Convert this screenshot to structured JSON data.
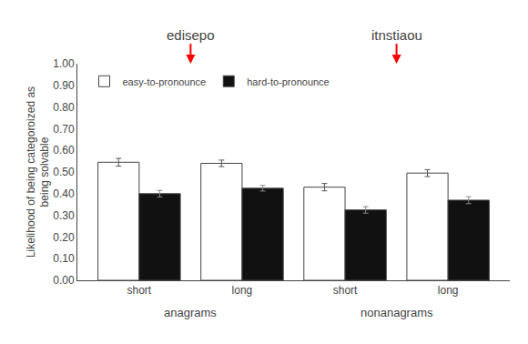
{
  "chart_data": {
    "type": "bar",
    "categories": [
      "short",
      "long",
      "short",
      "long"
    ],
    "group_labels": [
      "anagrams",
      "nonanagrams"
    ],
    "annotations": [
      "edisepo",
      "itnstiaou"
    ],
    "series": [
      {
        "name": "easy-to-pronounce",
        "color": "#ffffff",
        "values": [
          0.545,
          0.54,
          0.43,
          0.495
        ],
        "errors": [
          0.018,
          0.015,
          0.017,
          0.016
        ]
      },
      {
        "name": "hard-to-pronounce",
        "color": "#111111",
        "values": [
          0.4,
          0.425,
          0.325,
          0.37
        ],
        "errors": [
          0.015,
          0.013,
          0.015,
          0.016
        ]
      }
    ],
    "ylabel": "Likelihood of being categoroized as\nbeing solvable",
    "ylim": [
      0.0,
      1.0
    ],
    "yticks": [
      {
        "value": 0.0,
        "label": "0.00"
      },
      {
        "value": 0.1,
        "label": "0.10"
      },
      {
        "value": 0.2,
        "label": "0.20"
      },
      {
        "value": 0.3,
        "label": "0.30"
      },
      {
        "value": 0.4,
        "label": "0.40"
      },
      {
        "value": 0.5,
        "label": "0.50"
      },
      {
        "value": 0.6,
        "label": "0.60"
      },
      {
        "value": 0.7,
        "label": "0.70"
      },
      {
        "value": 0.8,
        "label": "0.80"
      },
      {
        "value": 0.9,
        "label": "0.90"
      },
      {
        "value": 1.0,
        "label": "1.00"
      }
    ],
    "grid": false,
    "legend": "upper left"
  }
}
